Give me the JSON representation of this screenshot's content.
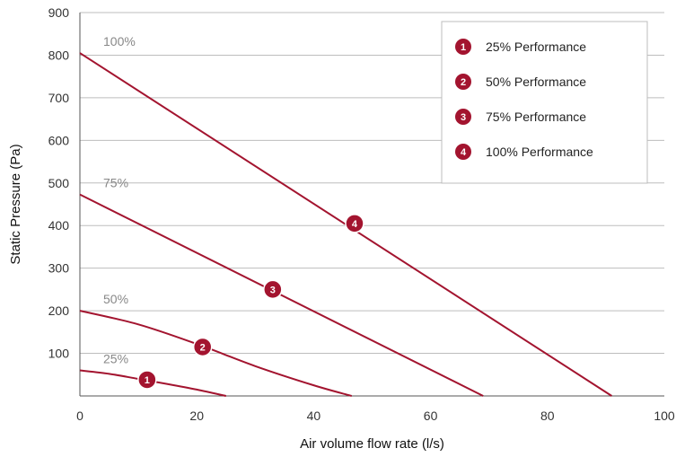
{
  "chart_data": {
    "type": "line",
    "xlabel": "Air volume flow rate (l/s)",
    "ylabel": "Static Pressure (Pa)",
    "xlim": [
      0,
      100
    ],
    "ylim": [
      0,
      900
    ],
    "x_ticks": [
      "0",
      "20",
      "40",
      "60",
      "80",
      "100"
    ],
    "y_ticks": [
      "100",
      "200",
      "300",
      "400",
      "500",
      "600",
      "700",
      "800",
      "900"
    ],
    "grid": "horizontal",
    "legend_position": "top-right",
    "color": "#a3142f",
    "series": [
      {
        "name": "25% Performance",
        "curve_label": "25%",
        "badge": "1",
        "badge_point": [
          11.5,
          38
        ],
        "x": [
          0,
          5,
          10,
          15,
          20,
          25
        ],
        "y": [
          60,
          52,
          40,
          28,
          15,
          0
        ]
      },
      {
        "name": "50% Performance",
        "curve_label": "50%",
        "badge": "2",
        "badge_point": [
          21,
          115
        ],
        "x": [
          0,
          10,
          20,
          30,
          40,
          46.5
        ],
        "y": [
          200,
          168,
          122,
          70,
          25,
          0
        ]
      },
      {
        "name": "75% Performance",
        "curve_label": "75%",
        "badge": "3",
        "badge_point": [
          33,
          250
        ],
        "x": [
          0,
          69
        ],
        "y": [
          473,
          0
        ]
      },
      {
        "name": "100% Performance",
        "curve_label": "100%",
        "badge": "4",
        "badge_point": [
          47,
          405
        ],
        "x": [
          0,
          91
        ],
        "y": [
          805,
          0
        ]
      }
    ]
  }
}
